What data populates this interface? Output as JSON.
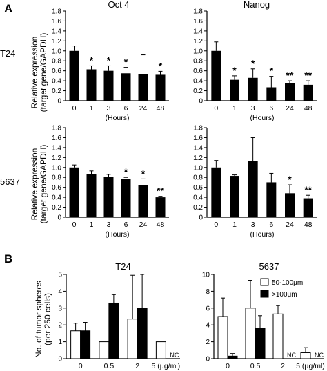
{
  "panels": {
    "a": "A",
    "b": "B"
  },
  "row_labels": {
    "r1": "T24",
    "r2": "5637"
  },
  "ylabel_a": {
    "line1": "Relative expression",
    "line2": "(target gene/GAPDH)"
  },
  "ylabel_b": {
    "line1": "No. of tumor spheres",
    "line2": "(per 250 cells)"
  },
  "colors": {
    "filled": "#000000",
    "open": "#ffffff"
  },
  "chart_data": [
    {
      "id": "a1",
      "type": "bar",
      "title": "Oct 4",
      "row": "T24",
      "xlabel": "(Hours)",
      "categories": [
        "0",
        "1",
        "3",
        "6",
        "24",
        "48"
      ],
      "values": [
        1.0,
        0.63,
        0.6,
        0.55,
        0.54,
        0.52
      ],
      "errors": [
        0.1,
        0.07,
        0.1,
        0.12,
        0.38,
        0.07
      ],
      "annotations": [
        "",
        "*",
        "*",
        "*",
        "",
        "*"
      ],
      "ylim": [
        0,
        1.8
      ],
      "yticks": [
        "0",
        "0.2",
        "0.4",
        "0.6",
        "0.8",
        "1.0",
        "1.2",
        "1.4",
        "1.6",
        "1.8"
      ]
    },
    {
      "id": "a2",
      "type": "bar",
      "title": "Nanog",
      "row": "T24",
      "xlabel": "(Hours)",
      "categories": [
        "0",
        "1",
        "3",
        "6",
        "24",
        "48"
      ],
      "values": [
        1.0,
        0.42,
        0.46,
        0.27,
        0.36,
        0.32
      ],
      "errors": [
        0.18,
        0.08,
        0.18,
        0.22,
        0.04,
        0.08
      ],
      "annotations": [
        "",
        "*",
        "*",
        "*",
        "**",
        "**"
      ],
      "ylim": [
        0,
        1.8
      ],
      "yticks": [
        "0",
        "0.2",
        "0.4",
        "0.6",
        "0.8",
        "1.0",
        "1.2",
        "1.4",
        "1.6",
        "1.8"
      ]
    },
    {
      "id": "a3",
      "type": "bar",
      "title": "",
      "row": "5637",
      "xlabel": "(Hours)",
      "categories": [
        "0",
        "1",
        "3",
        "6",
        "24",
        "48"
      ],
      "values": [
        1.0,
        0.86,
        0.81,
        0.77,
        0.64,
        0.4
      ],
      "errors": [
        0.05,
        0.07,
        0.05,
        0.03,
        0.13,
        0.02
      ],
      "annotations": [
        "",
        "",
        "",
        "*",
        "*",
        "**"
      ],
      "ylim": [
        0,
        1.8
      ],
      "yticks": [
        "0",
        "0.2",
        "0.4",
        "0.6",
        "0.8",
        "1.0",
        "1.2",
        "1.4",
        "1.6",
        "1.8"
      ]
    },
    {
      "id": "a4",
      "type": "bar",
      "title": "",
      "row": "5637",
      "xlabel": "(Hours)",
      "categories": [
        "0",
        "1",
        "3",
        "6",
        "24",
        "48"
      ],
      "values": [
        1.0,
        0.83,
        1.13,
        0.7,
        0.48,
        0.38
      ],
      "errors": [
        0.14,
        0.02,
        0.47,
        0.18,
        0.17,
        0.06
      ],
      "annotations": [
        "",
        "",
        "",
        "",
        "*",
        "**"
      ],
      "ylim": [
        0,
        1.8
      ],
      "yticks": [
        "0",
        "0.2",
        "0.4",
        "0.6",
        "0.8",
        "1.0",
        "1.2",
        "1.4",
        "1.6",
        "1.8"
      ]
    },
    {
      "id": "b1",
      "type": "bar",
      "title": "T24",
      "xlabel": "",
      "categories": [
        "0",
        "0.5",
        "2",
        "5 (μg/ml)"
      ],
      "series": [
        {
          "name": "50-100μm",
          "values": [
            1.65,
            1.0,
            2.35,
            1.0
          ],
          "errors": [
            0.45,
            0,
            2.6,
            0
          ]
        },
        {
          "name": ">100μm",
          "values": [
            1.65,
            3.3,
            3.0,
            0
          ],
          "errors": [
            0.5,
            0.5,
            2.0,
            0
          ]
        }
      ],
      "annotations": [
        "",
        "",
        "",
        "NC"
      ],
      "ylim": [
        0,
        5
      ],
      "yticks": [
        "0",
        "1",
        "2",
        "3",
        "4",
        "5"
      ]
    },
    {
      "id": "b2",
      "type": "bar",
      "title": "5637",
      "xlabel": "",
      "categories": [
        "0",
        "0.5",
        "2",
        "5 (μg/ml)"
      ],
      "series": [
        {
          "name": "50-100μm",
          "values": [
            5.0,
            6.0,
            5.3,
            0.7
          ],
          "errors": [
            2.2,
            3.3,
            1.0,
            0.6
          ]
        },
        {
          "name": ">100μm",
          "values": [
            0.3,
            3.6,
            0,
            0
          ],
          "errors": [
            0.3,
            1.5,
            0,
            0
          ]
        }
      ],
      "annotations": [
        "",
        "",
        "NC",
        "NC"
      ],
      "ylim": [
        0,
        10
      ],
      "yticks": [
        "0",
        "2",
        "4",
        "6",
        "8",
        "10"
      ],
      "legend": {
        "position": "top-right",
        "entries": [
          "50-100μm",
          ">100μm"
        ]
      }
    }
  ]
}
